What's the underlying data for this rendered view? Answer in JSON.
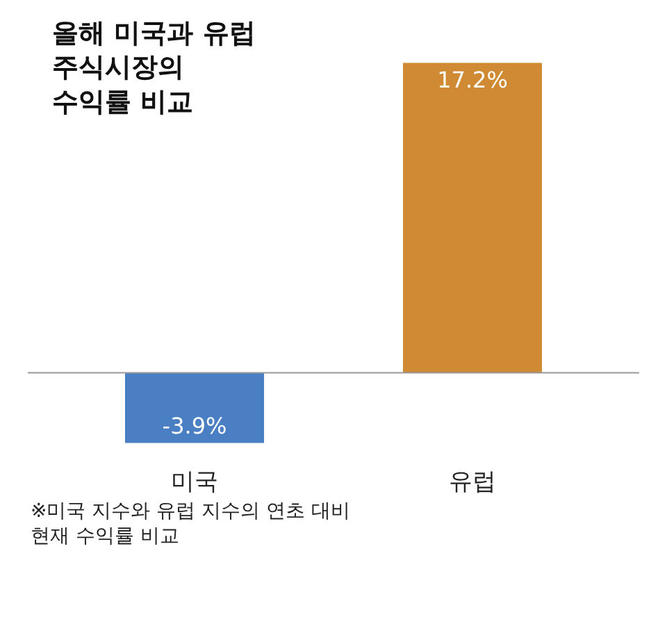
{
  "chart_data": {
    "type": "bar",
    "title": "올해 미국과 유럽\n주식시장의\n수익률 비교",
    "categories": [
      "미국",
      "유럽"
    ],
    "values": [
      -3.9,
      17.2
    ],
    "colors": [
      "#4a7fc4",
      "#cf8a33"
    ],
    "value_labels": [
      "-3.9%",
      "17.2%"
    ],
    "annotations": [
      "※미국 지수와 유럽 지수의 연초 대비\n현재 수익률 비교"
    ]
  }
}
